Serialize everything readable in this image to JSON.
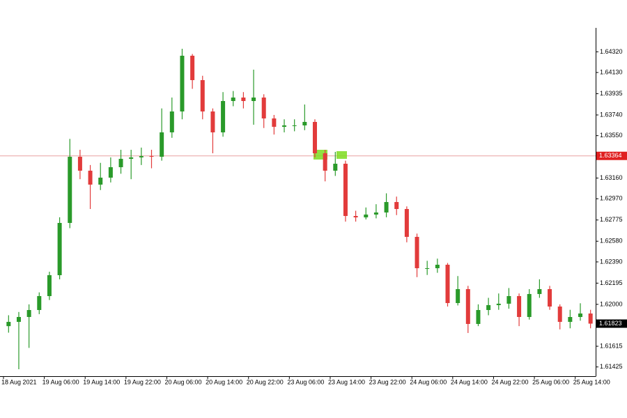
{
  "chart_data": {
    "type": "candlestick",
    "categories": [
      "18 Aug 2021",
      null,
      null,
      null,
      "19 Aug 06:00",
      null,
      null,
      null,
      "19 Aug 14:00",
      null,
      null,
      null,
      "19 Aug 22:00",
      null,
      null,
      null,
      "20 Aug 06:00",
      null,
      null,
      null,
      "20 Aug 14:00",
      null,
      null,
      null,
      "20 Aug 22:00",
      null,
      null,
      null,
      "23 Aug 06:00",
      null,
      null,
      null,
      "23 Aug 14:00",
      null,
      null,
      null,
      "23 Aug 22:00",
      null,
      null,
      null,
      "24 Aug 06:00",
      null,
      null,
      null,
      "24 Aug 14:00",
      null,
      null,
      null,
      "24 Aug 22:00",
      null,
      null,
      null,
      "25 Aug 06:00",
      null,
      null,
      null,
      "25 Aug 14:00",
      null
    ],
    "open": [
      1.618,
      1.61839,
      1.61884,
      1.61948,
      1.62076,
      1.62268,
      1.62748,
      1.63356,
      1.63228,
      1.631,
      1.63164,
      1.6326,
      1.63337,
      1.6335,
      1.63362,
      1.63356,
      1.6358,
      1.63772,
      1.64284,
      1.6406,
      1.63772,
      1.6358,
      1.63868,
      1.639,
      1.63868,
      1.639,
      1.63708,
      1.63631,
      1.63644,
      1.63644,
      1.63676,
      1.63388,
      1.63228,
      1.63292,
      1.62812,
      1.62799,
      1.62825,
      1.62844,
      1.6294,
      1.62876,
      1.6262,
      1.62332,
      1.62332,
      1.62364,
      1.62012,
      1.6214,
      1.6182,
      1.61948,
      1.61993,
      1.62006,
      1.62076,
      1.61884,
      1.62095,
      1.6214,
      1.6198,
      1.61839,
      1.61884,
      1.61916
    ],
    "high": [
      1.619,
      1.6193,
      1.62,
      1.6211,
      1.623,
      1.628,
      1.6352,
      1.6342,
      1.6328,
      1.633,
      1.6335,
      1.6342,
      1.6342,
      1.6344,
      1.6342,
      1.638,
      1.639,
      1.64348,
      1.643,
      1.641,
      1.638,
      1.6395,
      1.6396,
      1.6395,
      1.64156,
      1.6393,
      1.6374,
      1.637,
      1.637,
      1.63836,
      1.637,
      1.6342,
      1.63401,
      1.6332,
      1.6286,
      1.6289,
      1.6292,
      1.6302,
      1.6299,
      1.629,
      1.6265,
      1.624,
      1.6242,
      1.6238,
      1.6226,
      1.6217,
      1.62,
      1.6206,
      1.621,
      1.6215,
      1.621,
      1.6214,
      1.6223,
      1.6217,
      1.62,
      1.6195,
      1.6201,
      1.6195
    ],
    "low": [
      1.6174,
      1.61404,
      1.616,
      1.6191,
      1.6204,
      1.6223,
      1.627,
      1.6315,
      1.62876,
      1.6305,
      1.6312,
      1.632,
      1.6315,
      1.6328,
      1.6325,
      1.6332,
      1.6353,
      1.637,
      1.6398,
      1.637,
      1.63388,
      1.6354,
      1.6382,
      1.638,
      1.6365,
      1.6362,
      1.6356,
      1.6358,
      1.6359,
      1.636,
      1.6335,
      1.6313,
      1.6318,
      1.6276,
      1.6276,
      1.6278,
      1.6279,
      1.628,
      1.6282,
      1.6257,
      1.6225,
      1.6227,
      1.6229,
      1.6198,
      1.6199,
      1.61737,
      1.618,
      1.619,
      1.6195,
      1.6196,
      1.618,
      1.6186,
      1.6206,
      1.6195,
      1.6177,
      1.6178,
      1.6185,
      1.6178
    ],
    "close": [
      1.61839,
      1.61884,
      1.61948,
      1.62076,
      1.62268,
      1.62748,
      1.63356,
      1.63228,
      1.631,
      1.63164,
      1.6326,
      1.63337,
      1.6335,
      1.63362,
      1.63356,
      1.6358,
      1.63772,
      1.64284,
      1.6406,
      1.63772,
      1.6358,
      1.63868,
      1.639,
      1.63868,
      1.639,
      1.63708,
      1.63631,
      1.63644,
      1.63644,
      1.63676,
      1.63388,
      1.63228,
      1.63292,
      1.62812,
      1.62799,
      1.62825,
      1.62844,
      1.6294,
      1.62876,
      1.6262,
      1.62332,
      1.62332,
      1.62364,
      1.62012,
      1.6214,
      1.6182,
      1.61948,
      1.61993,
      1.62006,
      1.62076,
      1.61884,
      1.62095,
      1.6214,
      1.6198,
      1.61839,
      1.61884,
      1.61916,
      1.61823
    ],
    "up_color": "#2a9a2a",
    "down_color": "#e23b3b",
    "ylim": [
      1.6134,
      1.6454
    ],
    "yticks": [
      {
        "value": 1.6432,
        "label": "1.64320"
      },
      {
        "value": 1.6413,
        "label": "1.64130"
      },
      {
        "value": 1.63935,
        "label": "1.63935"
      },
      {
        "value": 1.6374,
        "label": "1.63740"
      },
      {
        "value": 1.6355,
        "label": "1.63550"
      },
      {
        "value": 1.6316,
        "label": "1.63160"
      },
      {
        "value": 1.6297,
        "label": "1.62970"
      },
      {
        "value": 1.62775,
        "label": "1.62775"
      },
      {
        "value": 1.6258,
        "label": "1.62580"
      },
      {
        "value": 1.6239,
        "label": "1.62390"
      },
      {
        "value": 1.62195,
        "label": "1.62195"
      },
      {
        "value": 1.62,
        "label": "1.62000"
      },
      {
        "value": 1.61615,
        "label": "1.61615"
      },
      {
        "value": 1.61425,
        "label": "1.61425"
      }
    ],
    "hline": {
      "value": 1.63364,
      "label": "1.63364",
      "color": "#e8a0a0"
    },
    "last_price": {
      "value": 1.61823,
      "label": "1.61823"
    }
  }
}
